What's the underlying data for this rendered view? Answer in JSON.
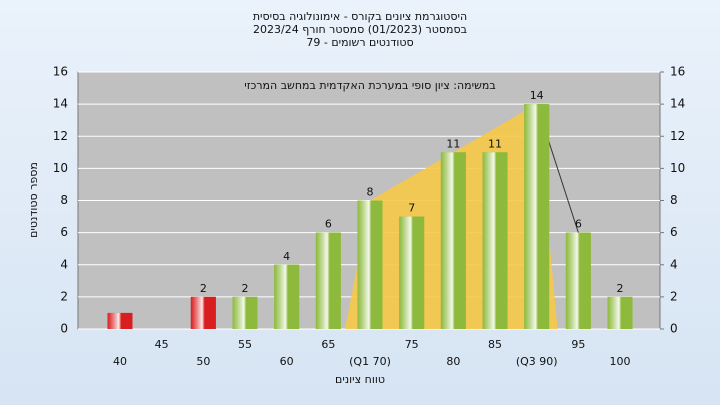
{
  "chart_data": {
    "type": "bar",
    "title": [
      "היסטוגרמת ציונים בקורס - אימונולוגיה בסיסית",
      "בסמסטר (01/2023) סמסטר חורף 2023/24",
      "סטודנטים רשומים - 79"
    ],
    "annotation": "במשימה: ציון סופי במערכת האקדמית במחשב המרכזי",
    "x_label": "טווח ציונים",
    "y_label": "מספר סטודנטים",
    "categories": [
      "40",
      "45",
      "50",
      "55",
      "60",
      "65",
      "(Q1 70)",
      "75",
      "80",
      "85",
      "(Q3 90)",
      "95",
      "100"
    ],
    "values": [
      1,
      0,
      2,
      2,
      4,
      6,
      8,
      7,
      11,
      11,
      14,
      6,
      2
    ],
    "value_labels": [
      null,
      null,
      "2",
      "2",
      "4",
      "6",
      "8",
      "7",
      "11",
      "11",
      "14",
      "6",
      "2"
    ],
    "colors": [
      "#d81e1e",
      "#d81e1e",
      "#d81e1e",
      "#8dba3c",
      "#8dba3c",
      "#8dba3c",
      "#8dba3c",
      "#8dba3c",
      "#8dba3c",
      "#8dba3c",
      "#8dba3c",
      "#8dba3c",
      "#8dba3c"
    ],
    "ylim": [
      0,
      16
    ],
    "yticks": [
      0,
      2,
      4,
      6,
      8,
      10,
      12,
      14,
      16
    ],
    "y2lim": [
      0,
      16
    ],
    "y2ticks": [
      0,
      2,
      4,
      6,
      8,
      10,
      12,
      14,
      16
    ],
    "grid": true
  }
}
